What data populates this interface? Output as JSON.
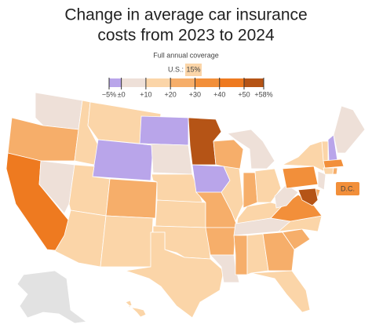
{
  "title_lines": [
    "Change in average car insurance",
    "costs from 2023 to 2024"
  ],
  "subtitle": "Full annual coverage",
  "us_label": "U.S.:",
  "us_value": {
    "value": 15,
    "label": "15%"
  },
  "us_color": "#fbd5a8",
  "legend": {
    "colors": [
      "#b9a5ea",
      "#eee0d8",
      "#fbd5a8",
      "#f6ae6a",
      "#f28f3a",
      "#ee7a20",
      "#b55416"
    ],
    "ticks": [
      {
        "value": -5,
        "label": "−5%"
      },
      {
        "value": 0,
        "label": "±0"
      },
      {
        "value": 10,
        "label": "+10"
      },
      {
        "value": 20,
        "label": "+20"
      },
      {
        "value": 30,
        "label": "+30"
      },
      {
        "value": 40,
        "label": "+40"
      },
      {
        "value": 50,
        "label": "+50"
      },
      {
        "value": 58,
        "label": "+58%"
      }
    ]
  },
  "dc_label": "D.C.",
  "dc_color": "#f28f3a",
  "regions": [
    {
      "color": "#eee0d8"
    },
    {
      "color": "#f6ae6a"
    },
    {
      "color": "#ee7a20"
    },
    {
      "color": "#eee0d8"
    },
    {
      "color": "#fbd5a8"
    },
    {
      "color": "#fbd5a8"
    },
    {
      "color": "#b9a5ea"
    },
    {
      "color": "#fbd5a8"
    },
    {
      "color": "#fbd5a8"
    },
    {
      "color": "#f6ae6a"
    },
    {
      "color": "#fbd5a8"
    },
    {
      "color": "#b9a5ea"
    },
    {
      "color": "#eee0d8"
    },
    {
      "color": "#fbd5a8"
    },
    {
      "color": "#fbd5a8"
    },
    {
      "color": "#fbd5a8"
    },
    {
      "color": "#fbd5a8"
    },
    {
      "color": "#b55416"
    },
    {
      "color": "#b9a5ea"
    },
    {
      "color": "#f6ae6a"
    },
    {
      "color": "#f6ae6a"
    },
    {
      "color": "#eee0d8"
    },
    {
      "color": "#f6ae6a"
    },
    {
      "color": "#fbd5a8"
    },
    {
      "color": "#eee0d8"
    },
    {
      "color": "#f6ae6a"
    },
    {
      "color": "#fbd5a8"
    },
    {
      "color": "#fbd5a8"
    },
    {
      "color": "#eee0d8"
    },
    {
      "color": "#f6ae6a"
    },
    {
      "color": "#fbd5a8"
    },
    {
      "color": "#f6ae6a"
    },
    {
      "color": "#fbd5a8"
    },
    {
      "color": "#f6ae6a"
    },
    {
      "color": "#fbd5a8"
    },
    {
      "color": "#f28f3a"
    },
    {
      "color": "#eee0d8"
    },
    {
      "color": "#f28f3a"
    },
    {
      "color": "#fbd5a8"
    },
    {
      "color": "#eee0d8"
    },
    {
      "color": "#f6ae6a"
    },
    {
      "color": "#b55416"
    },
    {
      "color": "#fbd5a8"
    },
    {
      "color": "#b9a5ea"
    },
    {
      "color": "#eee0d8"
    },
    {
      "color": "#f28f3a"
    },
    {
      "color": "#fbd5a8"
    },
    {
      "color": "#f6ae6a"
    },
    {
      "color": "#e2e2e2"
    },
    {
      "color": "#fbd5a8"
    }
  ]
}
